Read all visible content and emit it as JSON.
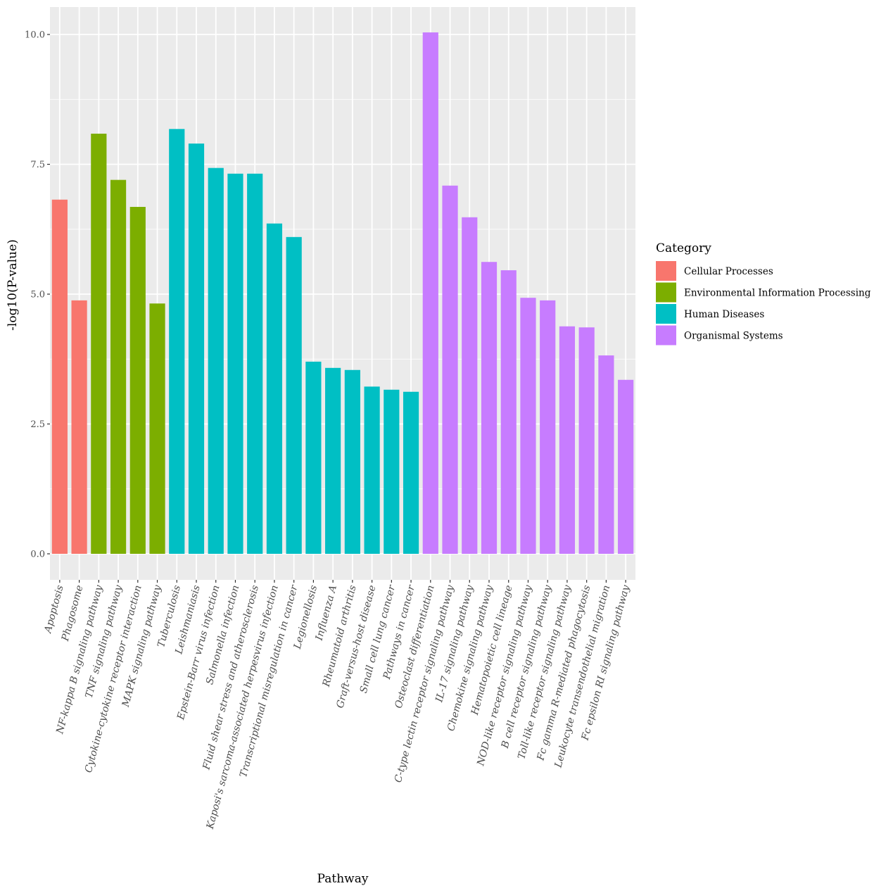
{
  "chart_data": {
    "type": "bar",
    "title": "",
    "xlabel": "Pathway",
    "ylabel": "-log10(P-value)",
    "ylim": [
      -0.5,
      10.55
    ],
    "yticks": [
      0.0,
      2.5,
      5.0,
      7.5,
      10.0
    ],
    "ytick_labels": [
      "0.0",
      "2.5",
      "5.0",
      "7.5",
      "10.0"
    ],
    "grid": true,
    "legend": {
      "title": "Category",
      "placement": "right",
      "entries": [
        {
          "name": "Cellular Processes",
          "color": "#F8766D"
        },
        {
          "name": "Environmental Information Processing",
          "color": "#7CAE00"
        },
        {
          "name": "Human Diseases",
          "color": "#00BFC4"
        },
        {
          "name": "Organismal Systems",
          "color": "#C77CFF"
        }
      ]
    },
    "categories": [
      "Apoptosis",
      "Phagosome",
      "NF-kappa B signaling pathway",
      "TNF signaling pathway",
      "Cytokine-cytokine receptor interaction",
      "MAPK signaling pathway",
      "Tuberculosis",
      "Leishmaniasis",
      "Epstein-Barr virus infection",
      "Salmonella infection",
      "Fluid shear stress and atherosclerosis",
      "Kaposi's sarcoma-associated herpesvirus infection",
      "Transcriptional misregulation in cancer",
      "Legionellosis",
      "Influenza A",
      "Rheumatoid arthritis",
      "Graft-versus-host disease",
      "Small cell lung cancer",
      "Pathways in cancer",
      "Osteoclast differentiation",
      "C-type lectin receptor signaling pathway",
      "IL-17 signaling pathway",
      "Chemokine signaling pathway",
      "Hematopoietic cell lineage",
      "NOD-like receptor signaling pathway",
      "B cell receptor signaling pathway",
      "Toll-like receptor signaling pathway",
      "Fc gamma R-mediated phagocytosis",
      "Leukocyte transendothelial migration",
      "Fc epsilon RI signaling pathway"
    ],
    "values": [
      6.82,
      4.88,
      8.09,
      7.2,
      6.68,
      4.82,
      8.18,
      7.9,
      7.43,
      7.32,
      7.32,
      6.36,
      6.1,
      3.7,
      3.58,
      3.54,
      3.22,
      3.16,
      3.12,
      10.04,
      7.09,
      6.48,
      5.62,
      5.46,
      4.93,
      4.88,
      4.38,
      4.36,
      3.82,
      3.35
    ],
    "category_of_bar": [
      "Cellular Processes",
      "Cellular Processes",
      "Environmental Information Processing",
      "Environmental Information Processing",
      "Environmental Information Processing",
      "Environmental Information Processing",
      "Human Diseases",
      "Human Diseases",
      "Human Diseases",
      "Human Diseases",
      "Human Diseases",
      "Human Diseases",
      "Human Diseases",
      "Human Diseases",
      "Human Diseases",
      "Human Diseases",
      "Human Diseases",
      "Human Diseases",
      "Human Diseases",
      "Organismal Systems",
      "Organismal Systems",
      "Organismal Systems",
      "Organismal Systems",
      "Organismal Systems",
      "Organismal Systems",
      "Organismal Systems",
      "Organismal Systems",
      "Organismal Systems",
      "Organismal Systems",
      "Organismal Systems"
    ],
    "panel_background": "#EBEBEB",
    "grid_color": "#FFFFFF"
  }
}
